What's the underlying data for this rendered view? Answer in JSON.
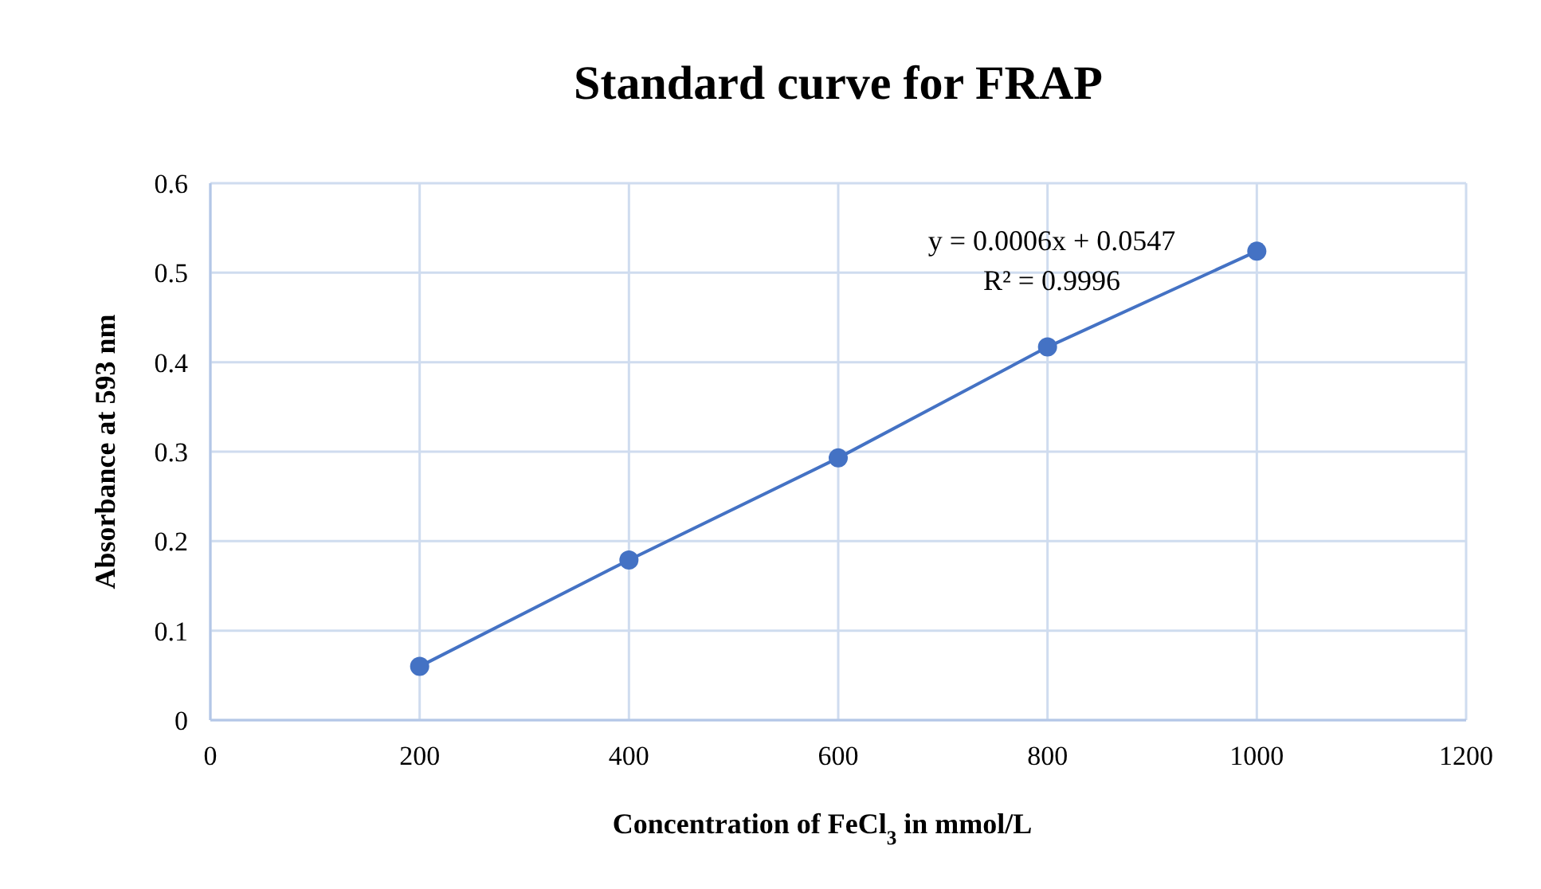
{
  "chart_data": {
    "type": "line",
    "title": "Standard curve for FRAP",
    "xlabel": "Concentration of FeCl$_{3}$ in mmol/L",
    "ylabel": "Absorbance at 593 nm",
    "x": [
      200,
      400,
      600,
      800,
      1000
    ],
    "series": [
      {
        "color": "#4472c4",
        "values": [
          0.06,
          0.179,
          0.293,
          0.417,
          0.524
        ]
      }
    ],
    "xlim": [
      0,
      1200
    ],
    "xticks": [
      0,
      200,
      400,
      600,
      800,
      1000,
      1200
    ],
    "ylim": [
      0,
      0.6
    ],
    "yticks": [
      0,
      0.1,
      0.2,
      0.3,
      0.4,
      0.5,
      0.6
    ],
    "grid": true,
    "marker": "circle",
    "line_style": "solid",
    "annotations": [
      "y = 0.0006x  + 0.0547",
      "R² = 0.9996"
    ]
  }
}
